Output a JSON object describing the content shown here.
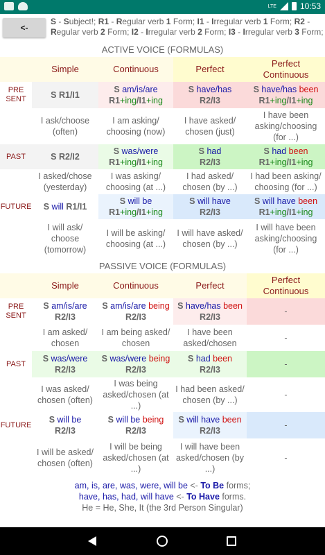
{
  "status": {
    "lte": "LTE",
    "time": "10:53"
  },
  "toolbar": {
    "back_label": "<-"
  },
  "legend": {
    "S": "S",
    "S_rest": " - ",
    "S_u": "S",
    "S_def": "ubject!; ",
    "R1": "R1",
    "R1_def": " - ",
    "R1_R": "R",
    "R1_text": "egular verb ",
    "R1_n": "1",
    "R1_form": " Form; ",
    "I1": "I1",
    "I1_def": " - ",
    "I1_I": "I",
    "I1_text": "rregular verb ",
    "I1_n": "1",
    "I1_form": " Form; ",
    "R2": "R2",
    "R2_def": " - ",
    "R2_R": "R",
    "R2_text": "egular verb ",
    "R2_n": "2",
    "R2_form": " Form; ",
    "I2": "I2",
    "I2_def": " - ",
    "I2_I": "I",
    "I2_text": "rregular verb ",
    "I2_n": "2",
    "I2_form": " Form; ",
    "I3": "I3",
    "I3_def": " - ",
    "I3_I": "I",
    "I3_text": "rregular verb ",
    "I3_n": "3",
    "I3_form": " Form;"
  },
  "active": {
    "title": "ACTIVE VOICE (FORMULAS)",
    "headers": [
      "Simple",
      "Continuous",
      "Perfect",
      "Perfect Continuous"
    ],
    "present_label": [
      "PRE",
      "SENT"
    ],
    "past_label": "PAST",
    "future_label": "FUTURE",
    "present": {
      "simple": {
        "s": "S",
        "v": "R1/I1"
      },
      "continuous": {
        "s": "S",
        "aux": "am/is/are",
        "v": "R1",
        "ing1": "+ing",
        "sep": "/",
        "v2": "I1",
        "ing2": "+ing"
      },
      "perfect": {
        "s": "S",
        "aux": "have/has",
        "v": "R2/I3"
      },
      "perfect_continuous": {
        "s": "S",
        "aux": "have/has",
        "been": "been",
        "v": "R1",
        "ing1": "+ing",
        "sep": "/",
        "v2": "I1",
        "ing2": "+ing"
      }
    },
    "present_ex": [
      "I ask/choose (often)",
      "I am asking/ choosing (now)",
      "I have asked/ chosen (just)",
      "I have been asking/choosing (for ...)"
    ],
    "past": {
      "simple": {
        "s": "S",
        "v": "R2/I2"
      },
      "continuous": {
        "s": "S",
        "aux": "was/were",
        "v": "R1",
        "ing1": "+ing",
        "sep": "/",
        "v2": "I1",
        "ing2": "+ing"
      },
      "perfect": {
        "s": "S",
        "aux": "had",
        "v": "R2/I3"
      },
      "perfect_continuous": {
        "s": "S",
        "aux": "had",
        "been": "been",
        "v": "R1",
        "ing1": "+ing",
        "sep": "/",
        "v2": "I1",
        "ing2": "+ing"
      }
    },
    "past_ex": [
      "I asked/chose (yesterday)",
      "I was asking/ choosing (at ...)",
      "I had asked/ chosen (by ...)",
      "I had been asking/ choosing (for ...)"
    ],
    "future": {
      "simple": {
        "s": "S",
        "aux": "will",
        "v": "R1/I1"
      },
      "continuous": {
        "s": "S",
        "aux": "will be",
        "v": "R1",
        "ing1": "+ing",
        "sep": "/",
        "v2": "I1",
        "ing2": "+ing"
      },
      "perfect": {
        "s": "S",
        "aux": "will have",
        "v": "R2/I3"
      },
      "perfect_continuous": {
        "s": "S",
        "aux": "will have",
        "been": "been",
        "v": "R1",
        "ing1": "+ing",
        "sep": "/",
        "v2": "I1",
        "ing2": "+ing"
      }
    },
    "future_ex": [
      "I will ask/ choose (tomorrow)",
      "I will be asking/ choosing (at ...)",
      "I will have asked/ chosen (by ...)",
      "I will have been asking/choosing (for ...)"
    ]
  },
  "passive": {
    "title": "PASSIVE VOICE (FORMULAS)",
    "headers": [
      "Simple",
      "Continuous",
      "Perfect",
      "Perfect Continuous"
    ],
    "present_label": [
      "PRE",
      "SENT"
    ],
    "past_label": "PAST",
    "future_label": "FUTURE",
    "present": {
      "simple": {
        "s": "S",
        "aux": "am/is/are",
        "v": "R2/I3"
      },
      "continuous": {
        "s": "S",
        "aux": "am/is/are",
        "being": "being",
        "v": "R2/I3"
      },
      "perfect": {
        "s": "S",
        "aux": "have/has",
        "been": "been",
        "v": "R2/I3"
      },
      "perfect_continuous": "-"
    },
    "present_ex": [
      "I am asked/ chosen",
      "I am being asked/ chosen",
      "I have been asked/chosen",
      "-"
    ],
    "past": {
      "simple": {
        "s": "S",
        "aux": "was/were",
        "v": "R2/I3"
      },
      "continuous": {
        "s": "S",
        "aux": "was/were",
        "being": "being",
        "v": "R2/I3"
      },
      "perfect": {
        "s": "S",
        "aux": "had",
        "been": "been",
        "v": "R2/I3"
      },
      "perfect_continuous": "-"
    },
    "past_ex": [
      "I was asked/ chosen (often)",
      "I was being asked/chosen (at ...)",
      "I had been asked/ chosen (by ...)",
      "-"
    ],
    "future": {
      "simple": {
        "s": "S",
        "aux": "will be",
        "v": "R2/I3"
      },
      "continuous": {
        "s": "S",
        "aux": "will be",
        "being": "being",
        "v": "R2/I3"
      },
      "perfect": {
        "s": "S",
        "aux": "will have",
        "been": "been",
        "v": "R2/I3"
      },
      "perfect_continuous": "-"
    },
    "future_ex": [
      "I will be asked/ chosen (often)",
      "I will be being asked/chosen (at ...)",
      "I will have been asked/chosen (by ...)",
      "-"
    ]
  },
  "footer": {
    "line1_forms": "am, is, are, was, were, will be",
    "line1_arrow": " <- ",
    "line1_name": "To Be",
    "line1_end": " forms;",
    "line2_forms": "have, has, had, will have",
    "line2_arrow": " <- ",
    "line2_name": "To Have",
    "line2_end": " forms.",
    "line3": "He = He, She, It (the 3rd Person Singular)"
  }
}
